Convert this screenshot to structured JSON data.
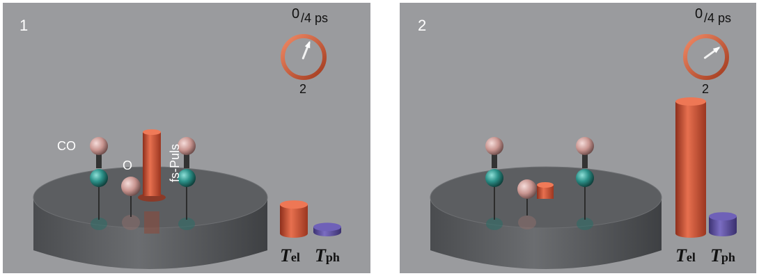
{
  "panels": [
    {
      "number": "1",
      "clock": {
        "top": "0",
        "bottom": "2",
        "scale": "/4 ps",
        "hand_fraction": 0.06
      },
      "molecule_label": "CO",
      "atom_label": "O",
      "pulse_label": "fs-Puls",
      "t_el_level": 0.22,
      "t_ph_level": 0.04
    },
    {
      "number": "2",
      "clock": {
        "top": "0",
        "bottom": "2",
        "scale": "/4 ps",
        "hand_fraction": 0.15
      },
      "t_el_level": 1.0,
      "t_ph_level": 0.12
    }
  ],
  "axis_labels": {
    "t_el_main": "T",
    "t_el_sub": "el",
    "t_ph_main": "T",
    "t_ph_sub": "ph"
  },
  "colors": {
    "background": "#9a9b9e",
    "platform": "#56585b",
    "electron_bar": "#d9583b",
    "phonon_bar": "#5d4f9c",
    "carbon": "#2c9088",
    "oxygen": "#d8aaa6",
    "clock_ring": "#d4562f"
  }
}
